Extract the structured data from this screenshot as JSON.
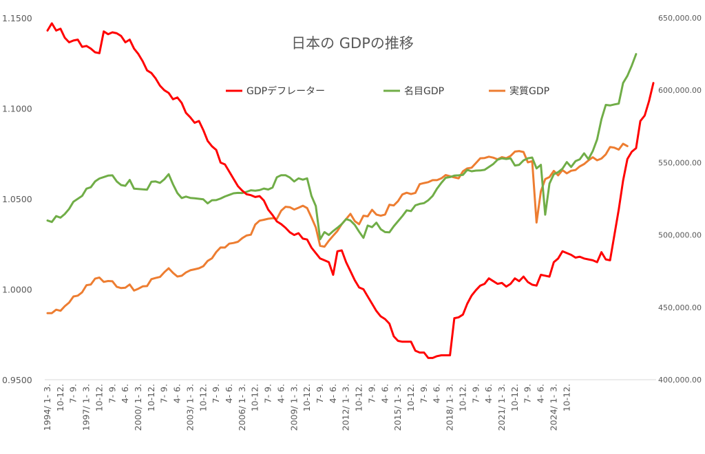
{
  "chart_data": {
    "type": "line",
    "title": "日本の GDPの推移",
    "legend_position": "top",
    "grid": false,
    "y_left": {
      "min": 0.95,
      "max": 1.15,
      "ticks": [
        "0.9500",
        "1.0000",
        "1.0500",
        "1.1000",
        "1.1500"
      ]
    },
    "y_right": {
      "min": 400000,
      "max": 650000,
      "ticks": [
        "400,000.00",
        "450,000.00",
        "500,000.00",
        "550,000.00",
        "600,000.00",
        "650,000.00"
      ]
    },
    "x_start_year": 1994,
    "x_labels": [
      "1994/ 1- 3.",
      "10-12.",
      "7- 9.",
      "1997/ 1- 3.",
      "10-12.",
      "7- 9.",
      "4- 6.",
      "2000/ 1- 3.",
      "10-12.",
      "7- 9.",
      "4- 6.",
      "2003/ 1- 3.",
      "10-12.",
      "7- 9.",
      "4- 6.",
      "2006/ 1- 3.",
      "10-12.",
      "7- 9.",
      "4- 6.",
      "2009/ 1- 3.",
      "10-12.",
      "7- 9.",
      "4- 6.",
      "2012/ 1- 3.",
      "10-12.",
      "7- 9.",
      "4- 6.",
      "2015/ 1- 3.",
      "10-12.",
      "7- 9.",
      "4- 6.",
      "2018/ 1- 3.",
      "10-12.",
      "7- 9.",
      "4- 6.",
      "2021/ 1- 3.",
      "10-12.",
      "7- 9.",
      "4- 6.",
      "2024/ 1- 3.",
      "10-12."
    ],
    "series": [
      {
        "name": "GDPデフレーター",
        "axis": "left",
        "color": "#ff0000",
        "values": [
          1.143,
          1.147,
          1.143,
          1.144,
          1.139,
          1.1365,
          1.1375,
          1.138,
          1.134,
          1.1345,
          1.133,
          1.131,
          1.1305,
          1.1425,
          1.141,
          1.142,
          1.1415,
          1.14,
          1.1365,
          1.138,
          1.133,
          1.13,
          1.126,
          1.121,
          1.1195,
          1.1165,
          1.1125,
          1.11,
          1.1085,
          1.105,
          1.106,
          1.103,
          1.0975,
          1.095,
          1.092,
          1.093,
          1.088,
          1.082,
          1.079,
          1.077,
          1.07,
          1.069,
          1.065,
          1.061,
          1.057,
          1.0545,
          1.0525,
          1.052,
          1.051,
          1.0515,
          1.049,
          1.044,
          1.041,
          1.0375,
          1.036,
          1.034,
          1.0315,
          1.03,
          1.031,
          1.028,
          1.0275,
          1.023,
          1.02,
          1.017,
          1.016,
          1.015,
          1.008,
          1.021,
          1.0215,
          1.015,
          1.01,
          1.005,
          1.001,
          1.0,
          0.996,
          0.992,
          0.988,
          0.985,
          0.9835,
          0.981,
          0.974,
          0.9715,
          0.971,
          0.971,
          0.971,
          0.966,
          0.965,
          0.965,
          0.962,
          0.962,
          0.963,
          0.9635,
          0.9635,
          0.9635,
          0.984,
          0.9845,
          0.986,
          0.992,
          0.9965,
          0.9995,
          1.002,
          1.003,
          1.006,
          1.0045,
          1.003,
          1.0035,
          1.0015,
          1.003,
          1.006,
          1.0045,
          1.007,
          1.004,
          1.0025,
          1.002,
          1.008,
          1.0075,
          1.007,
          1.015,
          1.017,
          1.021,
          1.02,
          1.019,
          1.0175,
          1.018,
          1.017,
          1.0165,
          1.016,
          1.015,
          1.0205,
          1.0165,
          1.016,
          1.03,
          1.044,
          1.06,
          1.072,
          1.076,
          1.078,
          1.093,
          1.096,
          1.104,
          1.114
        ]
      },
      {
        "name": "名目GDP",
        "axis": "right",
        "color": "#70ad47",
        "values": [
          510000,
          509000,
          513000,
          512000,
          514500,
          518000,
          523000,
          525000,
          527000,
          532000,
          533000,
          537000,
          539000,
          540000,
          541000,
          541200,
          537000,
          534500,
          534000,
          538000,
          532000,
          531800,
          531500,
          531300,
          536800,
          537000,
          536000,
          538500,
          542000,
          535000,
          529000,
          525500,
          526500,
          525600,
          525400,
          525000,
          524600,
          521800,
          524000,
          524100,
          525200,
          526600,
          527700,
          528800,
          529100,
          529000,
          529800,
          530900,
          530600,
          531000,
          532100,
          531400,
          532800,
          539900,
          541300,
          541300,
          539700,
          537000,
          539100,
          538200,
          539100,
          527000,
          520000,
          497000,
          502000,
          500000,
          502700,
          505000,
          507500,
          511000,
          510000,
          507000,
          502300,
          498000,
          506500,
          505400,
          508500,
          504000,
          502000,
          501800,
          506000,
          509500,
          513000,
          517000,
          516500,
          520500,
          521500,
          522000,
          524000,
          527000,
          532000,
          536000,
          539500,
          540000,
          541000,
          541200,
          541500,
          545000,
          544000,
          544500,
          544600,
          545000,
          547000,
          549000,
          552000,
          553000,
          552500,
          553000,
          548000,
          548500,
          551500,
          553000,
          553500,
          546000,
          548500,
          514000,
          535500,
          542000,
          543400,
          545800,
          550400,
          547000,
          551000,
          552300,
          556400,
          552400,
          558000,
          566000,
          580000,
          589900,
          589500,
          590200,
          590800,
          605000,
          610000,
          617000,
          625000
        ]
      },
      {
        "name": "実質GDP",
        "axis": "right",
        "color": "#ed7d31",
        "values": [
          446000,
          446000,
          448400,
          447600,
          450800,
          453300,
          457500,
          458100,
          460400,
          465300,
          465800,
          469800,
          470600,
          467600,
          468200,
          468000,
          464200,
          463300,
          463600,
          465800,
          461600,
          462900,
          464500,
          464700,
          469500,
          470300,
          471000,
          474300,
          477000,
          473800,
          471300,
          471800,
          474100,
          475600,
          476300,
          477000,
          478400,
          482100,
          483900,
          488200,
          491400,
          491300,
          494000,
          494500,
          495300,
          497800,
          499600,
          500200,
          507200,
          509900,
          510500,
          511200,
          511600,
          511100,
          516800,
          519500,
          519200,
          517600,
          518800,
          520200,
          518600,
          512100,
          505200,
          492500,
          491900,
          496000,
          499500,
          502800,
          507500,
          511000,
          514600,
          509600,
          507400,
          513300,
          512900,
          517400,
          514100,
          513300,
          514100,
          520900,
          520400,
          523400,
          528000,
          529200,
          528300,
          529100,
          535100,
          535900,
          536500,
          537900,
          537900,
          539100,
          541400,
          540600,
          539800,
          539100,
          544000,
          546000,
          546500,
          549700,
          553000,
          553200,
          554100,
          553400,
          552300,
          553800,
          553100,
          554600,
          557600,
          558000,
          557300,
          550200,
          551000,
          508600,
          530100,
          538600,
          540000,
          544300,
          541200,
          544800,
          542600,
          544400,
          544900,
          547400,
          549000,
          551500,
          553700,
          551600,
          552800,
          555700,
          560800,
          560300,
          559000,
          563000,
          561400
        ]
      }
    ]
  }
}
